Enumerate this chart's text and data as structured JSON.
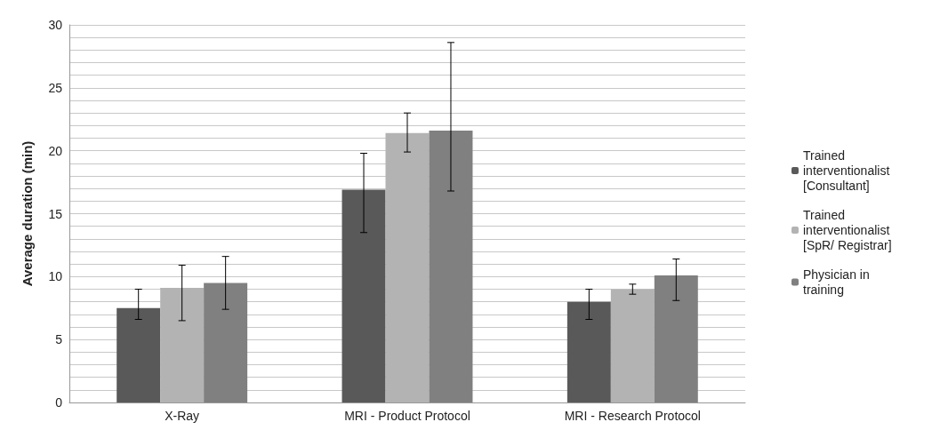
{
  "chart_data": {
    "type": "bar",
    "ylabel": "Average duration (min)",
    "categories": [
      "X-Ray",
      "MRI - Product Protocol",
      "MRI - Research Protocol"
    ],
    "series": [
      {
        "name": "Trained interventionalist [Consultant]",
        "color": "#595959",
        "values": [
          7.5,
          16.9,
          8.0
        ],
        "errors": [
          [
            6.6,
            9.0
          ],
          [
            13.5,
            19.8
          ],
          [
            6.6,
            9.0
          ]
        ]
      },
      {
        "name": "Trained interventionalist [SpR/ Registrar]",
        "color": "#b3b3b3",
        "values": [
          9.1,
          21.4,
          9.0
        ],
        "errors": [
          [
            6.5,
            10.9
          ],
          [
            19.9,
            23.0
          ],
          [
            8.6,
            9.4
          ]
        ]
      },
      {
        "name": "Physician in training",
        "color": "#808080",
        "values": [
          9.5,
          21.6,
          10.1
        ],
        "errors": [
          [
            7.4,
            11.6
          ],
          [
            16.8,
            28.6
          ],
          [
            8.1,
            11.4
          ]
        ]
      }
    ],
    "ylim": [
      0,
      30
    ],
    "yticks": [
      0,
      {
        "value": 1,
        "label": null
      },
      {
        "value": 2,
        "label": null
      },
      {
        "value": 3,
        "label": null
      },
      {
        "value": 4,
        "label": null
      },
      5,
      {
        "value": 6,
        "label": null
      },
      {
        "value": 7,
        "label": null
      },
      {
        "value": 8,
        "label": null
      },
      {
        "value": 9,
        "label": null
      },
      10,
      {
        "value": 11,
        "label": null
      },
      {
        "value": 12,
        "label": null
      },
      {
        "value": 13,
        "label": null
      },
      {
        "value": 14,
        "label": null
      },
      15,
      {
        "value": 16,
        "label": null
      },
      {
        "value": 17,
        "label": null
      },
      {
        "value": 18,
        "label": null
      },
      {
        "value": 19,
        "label": null
      },
      20,
      {
        "value": 21,
        "label": null
      },
      {
        "value": 22,
        "label": null
      },
      {
        "value": 23,
        "label": null
      },
      {
        "value": 24,
        "label": null
      },
      25,
      {
        "value": 26,
        "label": null
      },
      {
        "value": 27,
        "label": null
      },
      {
        "value": 28,
        "label": null
      },
      {
        "value": 29,
        "label": null
      },
      30
    ],
    "grid": true,
    "legend": "right"
  }
}
